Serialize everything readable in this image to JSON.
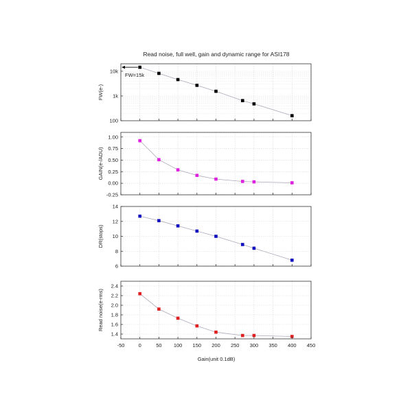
{
  "title": "Read noise, full well, gain and dynamic range for ASI178",
  "chart_data": {
    "type": "line",
    "shared_x": {
      "label": "Gain(unit 0.1dB)",
      "xlim": [
        -50,
        450
      ],
      "ticks": [
        -50,
        0,
        50,
        100,
        150,
        200,
        250,
        300,
        350,
        400,
        450
      ]
    },
    "panels": [
      {
        "ylabel": "FW(e-)",
        "scale": "log",
        "ylim": [
          100,
          20000
        ],
        "ytick_values": [
          100,
          1000,
          10000
        ],
        "ytick_labels": [
          "100",
          "1k",
          "10k"
        ],
        "color": "#000000",
        "x": [
          0,
          50,
          100,
          150,
          200,
          270,
          300,
          400
        ],
        "values": [
          14500,
          8200,
          4600,
          2700,
          1550,
          650,
          480,
          160
        ],
        "annotation": "FW=15k"
      },
      {
        "ylabel": "GAIN(e-/ADU)",
        "scale": "linear",
        "ylim": [
          -0.25,
          1.1
        ],
        "ytick_values": [
          -0.25,
          0.0,
          0.25,
          0.5,
          0.75,
          1.0
        ],
        "ytick_labels": [
          "-0.25",
          "0.00",
          "0.25",
          "0.50",
          "0.75",
          "1.00"
        ],
        "color": "#e020e0",
        "x": [
          0,
          50,
          100,
          150,
          200,
          270,
          300,
          400
        ],
        "values": [
          0.92,
          0.51,
          0.29,
          0.17,
          0.09,
          0.04,
          0.03,
          0.01
        ]
      },
      {
        "ylabel": "DR(stops)",
        "scale": "linear",
        "ylim": [
          6,
          14
        ],
        "ytick_values": [
          6,
          8,
          10,
          12,
          14
        ],
        "ytick_labels": [
          "6",
          "8",
          "10",
          "12",
          "14"
        ],
        "color": "#1010c0",
        "x": [
          0,
          50,
          100,
          150,
          200,
          270,
          300,
          400
        ],
        "values": [
          12.7,
          12.1,
          11.4,
          10.7,
          10.0,
          8.9,
          8.4,
          6.8
        ]
      },
      {
        "ylabel": "Read noise(e-rms)",
        "scale": "linear",
        "ylim": [
          1.3,
          2.5
        ],
        "ytick_values": [
          1.4,
          1.6,
          1.8,
          2.0,
          2.2,
          2.4
        ],
        "ytick_labels": [
          "1.4",
          "1.6",
          "1.8",
          "2.0",
          "2.2",
          "2.4"
        ],
        "color": "#e02020",
        "x": [
          0,
          50,
          100,
          150,
          200,
          270,
          300,
          400
        ],
        "values": [
          2.24,
          1.92,
          1.73,
          1.57,
          1.44,
          1.37,
          1.37,
          1.35
        ]
      }
    ],
    "line_color": "#b0a8b8",
    "grid": true
  }
}
